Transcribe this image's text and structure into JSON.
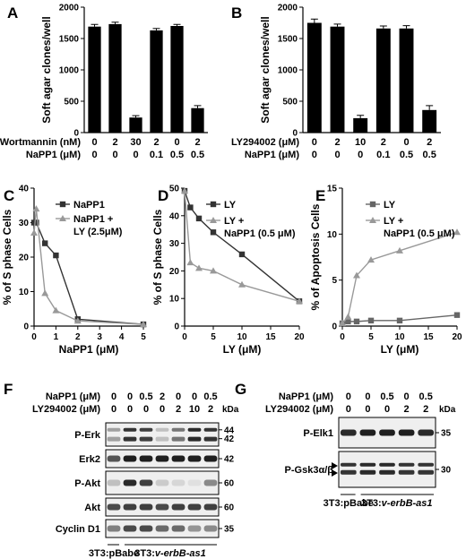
{
  "chart_data": [
    {
      "panel": "A",
      "type": "bar",
      "ylabel": "Soft agar clones/well",
      "ylim": [
        0,
        2000
      ],
      "yticks": [
        "0",
        "500",
        "1000",
        "1500",
        "2000"
      ],
      "rows": [
        {
          "label": "Wortmannin (nM)",
          "values": [
            "0",
            "2",
            "30",
            "2",
            "0",
            "2"
          ]
        },
        {
          "label": "NaPP1 (μM)",
          "values": [
            "0",
            "0",
            "0",
            "0.1",
            "0.5",
            "0.5"
          ]
        }
      ],
      "values": [
        1690,
        1730,
        240,
        1630,
        1700,
        390
      ],
      "errors": [
        35,
        30,
        30,
        30,
        25,
        40
      ],
      "color": "#000000"
    },
    {
      "panel": "B",
      "type": "bar",
      "ylabel": "Soft agar clones/well",
      "ylim": [
        0,
        2000
      ],
      "yticks": [
        "0",
        "500",
        "1000",
        "1500",
        "2000"
      ],
      "rows": [
        {
          "label": "LY294002 (μM)",
          "values": [
            "0",
            "2",
            "10",
            "2",
            "0",
            "2"
          ]
        },
        {
          "label": "NaPP1 (μM)",
          "values": [
            "0",
            "0",
            "0",
            "0.1",
            "0.5",
            "0.5"
          ]
        }
      ],
      "values": [
        1750,
        1690,
        230,
        1660,
        1660,
        360
      ],
      "errors": [
        60,
        40,
        45,
        40,
        45,
        70
      ],
      "color": "#000000"
    },
    {
      "panel": "C",
      "type": "line",
      "ylabel": "% of S phase Cells",
      "xlabel": "NaPP1 (μM)",
      "xlim": [
        0,
        5
      ],
      "ylim": [
        0,
        40
      ],
      "xticks": [
        "0",
        "1",
        "2",
        "3",
        "4",
        "5"
      ],
      "yticks": [
        "0",
        "10",
        "20",
        "30",
        "40"
      ],
      "legend": "top-right",
      "series": [
        {
          "name": "NaPP1",
          "marker": "square",
          "color": "#333333",
          "x": [
            0,
            0.1,
            0.5,
            1,
            2,
            5
          ],
          "y": [
            30,
            30,
            24,
            20.5,
            2,
            0.5
          ]
        },
        {
          "name": "NaPP1 + LY (2.5μM)",
          "marker": "triangle",
          "color": "#999999",
          "x": [
            0,
            0.1,
            0.5,
            1,
            2,
            5
          ],
          "y": [
            27,
            34,
            9.5,
            4.5,
            1.5,
            0.5
          ]
        }
      ]
    },
    {
      "panel": "D",
      "type": "line",
      "ylabel": "% of S phase Cells",
      "xlabel": "LY (μM)",
      "xlim": [
        0,
        20
      ],
      "ylim": [
        0,
        50
      ],
      "xticks": [
        "0",
        "5",
        "10",
        "15",
        "20"
      ],
      "yticks": [
        "0",
        "10",
        "20",
        "30",
        "40",
        "50"
      ],
      "legend": "top-right",
      "series": [
        {
          "name": "LY",
          "marker": "square",
          "color": "#333333",
          "x": [
            0,
            1,
            2.5,
            5,
            10,
            20
          ],
          "y": [
            49,
            43,
            39,
            34,
            26,
            9
          ]
        },
        {
          "name": "LY + NaPP1 (0.5 μM)",
          "marker": "triangle",
          "color": "#999999",
          "x": [
            0,
            1,
            2.5,
            5,
            10,
            20
          ],
          "y": [
            49,
            23,
            21,
            20,
            15,
            9
          ]
        }
      ]
    },
    {
      "panel": "E",
      "type": "line",
      "ylabel": "% of Apoptosis Cells",
      "xlabel": "LY (μM)",
      "xlim": [
        0,
        20
      ],
      "ylim": [
        0,
        15
      ],
      "xticks": [
        "0",
        "5",
        "10",
        "15",
        "20"
      ],
      "yticks": [
        "0",
        "5",
        "10",
        "15"
      ],
      "legend": "top-right",
      "series": [
        {
          "name": "LY",
          "marker": "square",
          "color": "#666666",
          "x": [
            0,
            1,
            2.5,
            5,
            10,
            20
          ],
          "y": [
            0.3,
            0.5,
            0.5,
            0.6,
            0.6,
            1.2
          ]
        },
        {
          "name": "LY + NaPP1 (0.5 μM)",
          "marker": "triangle",
          "color": "#999999",
          "x": [
            0,
            1,
            2.5,
            5,
            10,
            20
          ],
          "y": [
            0.3,
            1,
            5.5,
            7.2,
            8.2,
            10.2
          ]
        }
      ]
    }
  ],
  "blot_F": {
    "panel": "F",
    "rows": [
      {
        "label": "NaPP1 (μM)",
        "values": [
          "0",
          "0",
          "0.5",
          "2",
          "0",
          "0",
          "0.5"
        ]
      },
      {
        "label": "LY294002 (μM)",
        "values": [
          "0",
          "0",
          "0",
          "0",
          "2",
          "10",
          "2"
        ]
      }
    ],
    "kda_header": "kDa",
    "bands": [
      {
        "label": "P-Erk",
        "markers": [
          "44",
          "42"
        ],
        "intensity": [
          0.35,
          0.85,
          0.8,
          0.2,
          0.55,
          0.9,
          0.85
        ]
      },
      {
        "label": "Erk2",
        "markers": [
          "42"
        ],
        "intensity": [
          0.7,
          0.95,
          0.95,
          0.95,
          0.95,
          0.95,
          0.95
        ]
      },
      {
        "label": "P-Akt",
        "markers": [
          "60"
        ],
        "intensity": [
          0.2,
          0.9,
          0.8,
          0.15,
          0.1,
          0.05,
          0.45
        ]
      },
      {
        "label": "Akt",
        "markers": [
          "60"
        ],
        "intensity": [
          0.75,
          0.8,
          0.8,
          0.75,
          0.8,
          0.8,
          0.8
        ]
      },
      {
        "label": "Cyclin D1",
        "markers": [
          "35"
        ],
        "intensity": [
          0.5,
          0.75,
          0.75,
          0.6,
          0.6,
          0.4,
          0.45
        ]
      }
    ],
    "groups": [
      "3T3:pBabe",
      "3T3:"
    ],
    "group_italic": "v-erbB-as1"
  },
  "blot_G": {
    "panel": "G",
    "rows": [
      {
        "label": "NaPP1 (μM)",
        "values": [
          "0",
          "0",
          "0.5",
          "0",
          "0.5"
        ]
      },
      {
        "label": "LY294002 (μM)",
        "values": [
          "0",
          "0",
          "0",
          "2",
          "2"
        ]
      }
    ],
    "kda_header": "kDa",
    "bands": [
      {
        "label": "P-Elk1",
        "markers": [
          "35"
        ],
        "intensity": [
          0.9,
          0.95,
          0.95,
          0.95,
          0.9
        ]
      },
      {
        "label": "P-Gsk3α/β",
        "markers": [
          "30"
        ],
        "intensity": [
          0.85,
          0.9,
          0.9,
          0.85,
          0.85
        ]
      }
    ],
    "groups": [
      "3T3:pBabe",
      "3T3:"
    ],
    "group_italic": "v-erbB-as1"
  }
}
